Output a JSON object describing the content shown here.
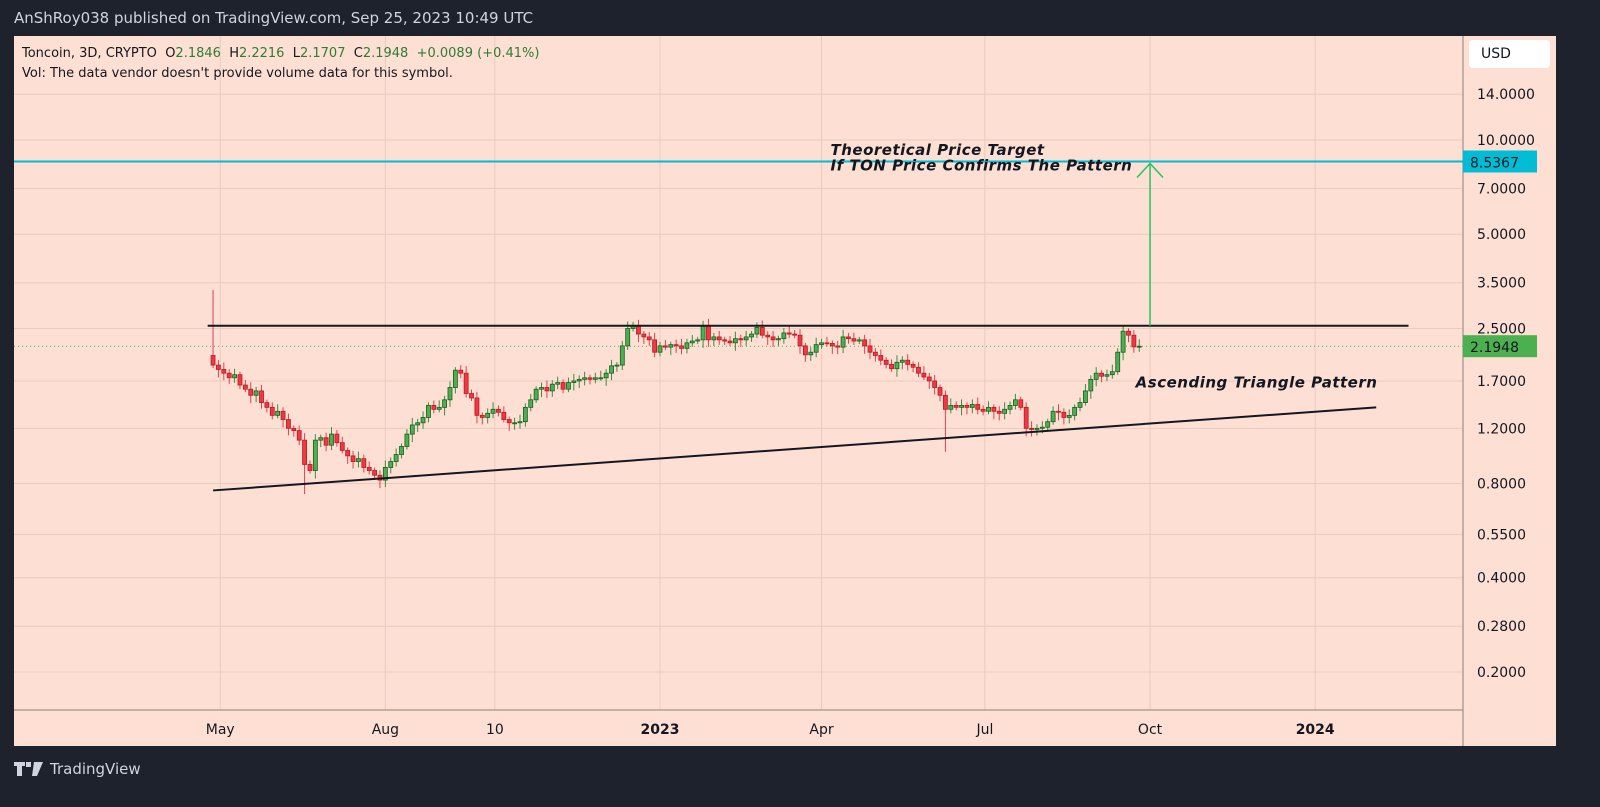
{
  "publisher": "AnShRoy038 published on TradingView.com, Sep 25, 2023 10:49 UTC",
  "legend": {
    "symbol": "Toncoin, 3D, CRYPTO",
    "open_label": "O",
    "open": "2.1846",
    "high_label": "H",
    "high": "2.2216",
    "low_label": "L",
    "low": "2.1707",
    "close_label": "C",
    "close": "2.1948",
    "change": "+0.0089 (+0.41%)",
    "volume_note": "Vol: The data vendor doesn't provide volume data for this symbol."
  },
  "currency": "USD",
  "footer": {
    "brand": "TradingView"
  },
  "colors": {
    "background": "#fde0d3",
    "up": "#4caf50",
    "down": "#f23645",
    "target_line": "#00bcd4",
    "arrow": "#22c55e",
    "trendline": "#131722",
    "current_price": "#4caf50"
  },
  "chart_data": {
    "type": "candlestick",
    "title": "",
    "interval": "3D",
    "last_date": "2023-09-25",
    "y_scale": "log",
    "ylim": [
      0.17,
      18
    ],
    "x_range": [
      "2022-01-06",
      "2024-03-23"
    ],
    "grid": true,
    "y_ticks": [
      "14.0000",
      "10.0000",
      "7.0000",
      "5.0000",
      "3.5000",
      "2.5000",
      "1.7000",
      "1.2000",
      "0.8000",
      "0.5500",
      "0.4000",
      "0.2800",
      "0.2000"
    ],
    "x_ticks": [
      {
        "label": "May",
        "date": "2022-05-01"
      },
      {
        "label": "Aug",
        "date": "2022-08-01"
      },
      {
        "label": "10",
        "date": "2022-10-01"
      },
      {
        "label": "2023",
        "date": "2023-01-01"
      },
      {
        "label": "Apr",
        "date": "2023-04-01"
      },
      {
        "label": "Jul",
        "date": "2023-07-01"
      },
      {
        "label": "Oct",
        "date": "2023-10-01"
      },
      {
        "label": "2024",
        "date": "2024-01-01"
      }
    ],
    "first_open": 2.05,
    "first_high": 3.32,
    "closes": [
      1.91,
      1.85,
      1.8,
      1.74,
      1.78,
      1.65,
      1.6,
      1.53,
      1.58,
      1.45,
      1.4,
      1.32,
      1.36,
      1.28,
      1.2,
      1.18,
      1.1,
      0.92,
      0.88,
      1.1,
      1.12,
      1.06,
      1.15,
      1.08,
      1.02,
      0.98,
      0.94,
      0.96,
      0.9,
      0.88,
      0.85,
      0.82,
      0.9,
      0.94,
      0.99,
      1.05,
      1.15,
      1.23,
      1.25,
      1.3,
      1.42,
      1.38,
      1.4,
      1.48,
      1.62,
      1.84,
      1.8,
      1.55,
      1.5,
      1.32,
      1.3,
      1.34,
      1.38,
      1.35,
      1.28,
      1.25,
      1.25,
      1.26,
      1.4,
      1.48,
      1.6,
      1.62,
      1.58,
      1.66,
      1.68,
      1.6,
      1.68,
      1.7,
      1.72,
      1.74,
      1.72,
      1.74,
      1.74,
      1.8,
      1.9,
      1.91,
      2.2,
      2.5,
      2.55,
      2.4,
      2.35,
      2.3,
      2.1,
      2.2,
      2.18,
      2.22,
      2.2,
      2.16,
      2.25,
      2.28,
      2.3,
      2.55,
      2.3,
      2.35,
      2.3,
      2.28,
      2.25,
      2.32,
      2.3,
      2.35,
      2.4,
      2.52,
      2.38,
      2.35,
      2.3,
      2.32,
      2.42,
      2.4,
      2.38,
      2.2,
      2.06,
      2.1,
      2.22,
      2.25,
      2.24,
      2.2,
      2.18,
      2.35,
      2.32,
      2.28,
      2.3,
      2.2,
      2.1,
      2.05,
      1.98,
      1.92,
      1.86,
      1.95,
      1.98,
      1.92,
      1.88,
      1.8,
      1.75,
      1.7,
      1.62,
      1.53,
      1.38,
      1.42,
      1.4,
      1.42,
      1.4,
      1.43,
      1.38,
      1.36,
      1.4,
      1.36,
      1.34,
      1.38,
      1.42,
      1.48,
      1.4,
      1.2,
      1.19,
      1.2,
      1.21,
      1.26,
      1.36,
      1.35,
      1.3,
      1.32,
      1.4,
      1.45,
      1.58,
      1.72,
      1.8,
      1.76,
      1.78,
      1.82,
      2.1,
      2.45,
      2.38,
      2.1846,
      2.1948
    ],
    "notable_lows": [
      {
        "date": "2022-06-17",
        "low": 0.74
      },
      {
        "date": "2023-06-10",
        "low": 1.01
      }
    ],
    "current_price": {
      "value": 2.1948,
      "label": "2.1948"
    },
    "target_level": {
      "value": 8.5367,
      "label": "8.5367"
    },
    "resistance_line": {
      "from": {
        "date": "2022-04-24",
        "price": 2.55
      },
      "to": {
        "date": "2024-02-22",
        "price": 2.55
      }
    },
    "support_trendline": {
      "from": {
        "date": "2022-04-27",
        "price": 0.76
      },
      "to": {
        "date": "2024-02-04",
        "price": 1.4
      }
    },
    "target_arrow": {
      "date": "2023-10-01",
      "from": 2.55,
      "to": 8.5367
    },
    "annotations": [
      {
        "text": "Theoretical Price Target",
        "date": "2023-04-06",
        "price": 9.3
      },
      {
        "text": "If TON Price Confirms The Pattern",
        "date": "2023-04-06",
        "price": 8.3
      },
      {
        "text": "Ascending Triangle Pattern",
        "date": "2023-09-23",
        "price": 1.68
      }
    ]
  }
}
